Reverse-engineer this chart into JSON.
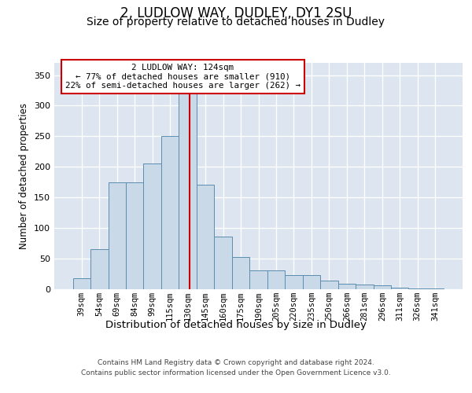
{
  "title1": "2, LUDLOW WAY, DUDLEY, DY1 2SU",
  "title2": "Size of property relative to detached houses in Dudley",
  "xlabel": "Distribution of detached houses by size in Dudley",
  "ylabel": "Number of detached properties",
  "categories": [
    "39sqm",
    "54sqm",
    "69sqm",
    "84sqm",
    "99sqm",
    "115sqm",
    "130sqm",
    "145sqm",
    "160sqm",
    "175sqm",
    "190sqm",
    "205sqm",
    "220sqm",
    "235sqm",
    "250sqm",
    "266sqm",
    "281sqm",
    "296sqm",
    "311sqm",
    "326sqm",
    "341sqm"
  ],
  "values": [
    18,
    65,
    175,
    175,
    205,
    250,
    330,
    170,
    85,
    52,
    30,
    30,
    22,
    22,
    14,
    8,
    7,
    6,
    2,
    1,
    1
  ],
  "bar_color": "#c9d9e8",
  "bar_edge_color": "#5b8db0",
  "vline_x": 6.1,
  "vline_color": "#cc0000",
  "annotation_text": "2 LUDLOW WAY: 124sqm\n← 77% of detached houses are smaller (910)\n22% of semi-detached houses are larger (262) →",
  "annotation_box_facecolor": "#ffffff",
  "annotation_box_edgecolor": "#cc0000",
  "ylim": [
    0,
    370
  ],
  "yticks": [
    0,
    50,
    100,
    150,
    200,
    250,
    300,
    350
  ],
  "plot_bg_color": "#dde6f0",
  "footer_line1": "Contains HM Land Registry data © Crown copyright and database right 2024.",
  "footer_line2": "Contains public sector information licensed under the Open Government Licence v3.0."
}
